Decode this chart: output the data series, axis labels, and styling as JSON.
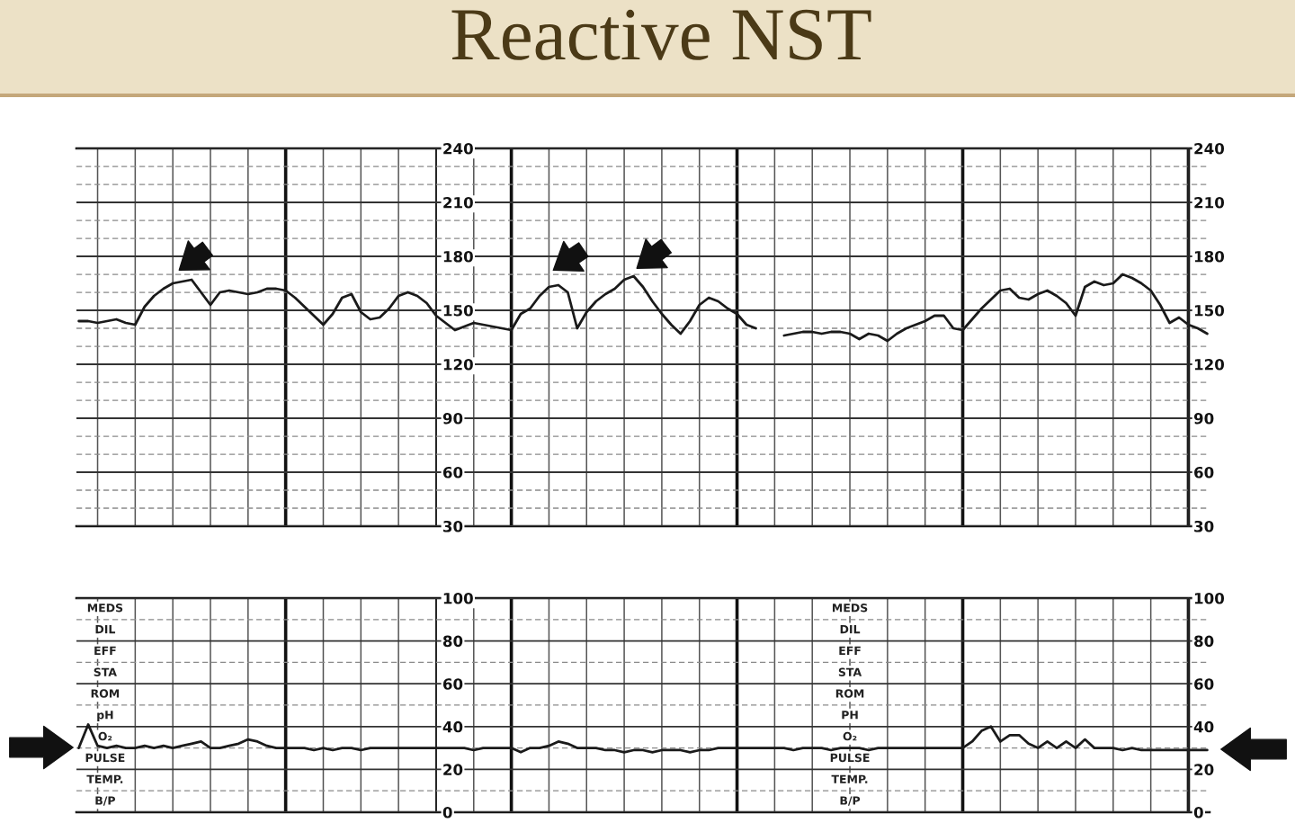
{
  "chart_data": [
    {
      "type": "line",
      "title": "Reactive NST",
      "categories": [
        null,
        null,
        null,
        null,
        null,
        null,
        null,
        null,
        null,
        null,
        null,
        null,
        null,
        null,
        null,
        null,
        null,
        null,
        null,
        null,
        null,
        null,
        null,
        null,
        null,
        null,
        null,
        null,
        null,
        null,
        null,
        null,
        null,
        null,
        null,
        null,
        null,
        null,
        null,
        null,
        null,
        null,
        null,
        null,
        null,
        null,
        null,
        null,
        null,
        null,
        null,
        null,
        null,
        null,
        null,
        null,
        null,
        null,
        null,
        null,
        null,
        null,
        null,
        null,
        null,
        null,
        null,
        null,
        null,
        null,
        null,
        null,
        null,
        null,
        null,
        null,
        null,
        null,
        null,
        null,
        null,
        null,
        null,
        null,
        null,
        null,
        null,
        null,
        null,
        null,
        null,
        null,
        null,
        null,
        null,
        null,
        null,
        null,
        null,
        null,
        null,
        null,
        null,
        null,
        null,
        null,
        null,
        null,
        null,
        null,
        null,
        null,
        null,
        null,
        null,
        null,
        null,
        null,
        null,
        null,
        null
      ],
      "series": [
        {
          "color": "#1a1a1a",
          "values": [
            144,
            144,
            143,
            144,
            145,
            143,
            142,
            152,
            158,
            162,
            165,
            166,
            167,
            160,
            153,
            160,
            161,
            160,
            159,
            160,
            162,
            162,
            161,
            157,
            152,
            147,
            142,
            148,
            157,
            159,
            149,
            145,
            146,
            151,
            158,
            160,
            158,
            154,
            147,
            143,
            139,
            141,
            143,
            142,
            141,
            140,
            139,
            148,
            151,
            158,
            163,
            164,
            160,
            140,
            149,
            155,
            159,
            162,
            167,
            169,
            163,
            155,
            148,
            142,
            137,
            144,
            153,
            157,
            155,
            151,
            148,
            142,
            140,
            null,
            null,
            null,
            null,
            null,
            null,
            null,
            null,
            null,
            null,
            null,
            null,
            null,
            null,
            null,
            null,
            null,
            null,
            null,
            null,
            null,
            null,
            null,
            null,
            null,
            null,
            null,
            null,
            null,
            null,
            null,
            null,
            null,
            null,
            null,
            null,
            null,
            null,
            null,
            null,
            null,
            null,
            null,
            null,
            null,
            null,
            null,
            null
          ]
        },
        {
          "color": "#1a1a1a",
          "values": [
            null,
            null,
            null,
            null,
            null,
            null,
            null,
            null,
            null,
            null,
            null,
            null,
            null,
            null,
            null,
            null,
            null,
            null,
            null,
            null,
            null,
            null,
            null,
            null,
            null,
            null,
            null,
            null,
            null,
            null,
            null,
            null,
            null,
            null,
            null,
            null,
            null,
            null,
            null,
            null,
            null,
            null,
            null,
            null,
            null,
            null,
            null,
            null,
            null,
            null,
            null,
            null,
            null,
            null,
            null,
            null,
            null,
            null,
            null,
            null,
            null,
            null,
            null,
            null,
            null,
            null,
            null,
            null,
            null,
            null,
            null,
            null,
            null,
            null,
            null,
            136,
            137,
            138,
            138,
            137,
            138,
            138,
            137,
            134,
            137,
            136,
            133,
            137,
            140,
            142,
            144,
            147,
            147,
            140,
            139,
            145,
            151,
            156,
            161,
            162,
            157,
            156,
            159,
            161,
            158,
            154,
            147,
            163,
            166,
            164,
            165,
            170,
            168,
            165,
            161,
            153,
            143,
            146,
            142,
            140,
            137
          ]
        }
      ],
      "ylim": [
        30,
        240
      ],
      "yticks": [
        30,
        {
          "value": 40,
          "label": null
        },
        {
          "value": 50,
          "label": null
        },
        60,
        {
          "value": 70,
          "label": null
        },
        {
          "value": 80,
          "label": null
        },
        90,
        {
          "value": 100,
          "label": null
        },
        {
          "value": 110,
          "label": null
        },
        120,
        {
          "value": 130,
          "label": null
        },
        {
          "value": 140,
          "label": null
        },
        150,
        {
          "value": 160,
          "label": null
        },
        {
          "value": 170,
          "label": null
        },
        180,
        {
          "value": 190,
          "label": null
        },
        {
          "value": 200,
          "label": null
        },
        210,
        {
          "value": 220,
          "label": null
        },
        {
          "value": 230,
          "label": null
        },
        240
      ],
      "y2lim": [
        30,
        240
      ],
      "y2ticks": [
        30,
        {
          "value": 40,
          "label": null
        },
        {
          "value": 50,
          "label": null
        },
        60,
        {
          "value": 70,
          "label": null
        },
        {
          "value": 80,
          "label": null
        },
        90,
        {
          "value": 100,
          "label": null
        },
        {
          "value": 110,
          "label": null
        },
        120,
        {
          "value": 130,
          "label": null
        },
        {
          "value": 140,
          "label": null
        },
        150,
        {
          "value": 160,
          "label": null
        },
        {
          "value": 170,
          "label": null
        },
        180,
        {
          "value": 190,
          "label": null
        },
        {
          "value": 200,
          "label": null
        },
        210,
        {
          "value": 220,
          "label": null
        },
        {
          "value": 230,
          "label": null
        },
        240
      ],
      "grid": true,
      "tick_labels": "y",
      "line_style": "solid"
    },
    {
      "type": "line",
      "categories": [
        null,
        null,
        null,
        null,
        null,
        null,
        null,
        null,
        null,
        null,
        null,
        null,
        null,
        null,
        null,
        null,
        null,
        null,
        null,
        null,
        null,
        null,
        null,
        null,
        null,
        null,
        null,
        null,
        null,
        null,
        null,
        null,
        null,
        null,
        null,
        null,
        null,
        null,
        null,
        null,
        null,
        null,
        null,
        null,
        null,
        null,
        null,
        null,
        null,
        null,
        null,
        null,
        null,
        null,
        null,
        null,
        null,
        null,
        null,
        null,
        null,
        null,
        null,
        null,
        null,
        null,
        null,
        null,
        null,
        null,
        null,
        null,
        null,
        null,
        null,
        null,
        null,
        null,
        null,
        null,
        null,
        null,
        null,
        null,
        null,
        null,
        null,
        null,
        null,
        null,
        null,
        null,
        null,
        null,
        null,
        null,
        null,
        null,
        null,
        null,
        null,
        null,
        null,
        null,
        null,
        null,
        null,
        null,
        null,
        null,
        null,
        null,
        null,
        null,
        null,
        null,
        null,
        null,
        null,
        null,
        null
      ],
      "series": [
        {
          "color": "#1a1a1a",
          "values": [
            30,
            41,
            31,
            30,
            31,
            30,
            30,
            31,
            30,
            31,
            30,
            31,
            32,
            33,
            30,
            30,
            31,
            32,
            34,
            33,
            31,
            30,
            30,
            30,
            30,
            29,
            30,
            29,
            30,
            30,
            29,
            30,
            30,
            30,
            30,
            30,
            30,
            30,
            30,
            30,
            30,
            30,
            29,
            30,
            30,
            30,
            30,
            28,
            30,
            30,
            31,
            33,
            32,
            30,
            30,
            30,
            29,
            29,
            28,
            29,
            29,
            28,
            29,
            29,
            29,
            28,
            29,
            29,
            30,
            30,
            30,
            30,
            30,
            30,
            30,
            30,
            29,
            30,
            30,
            30,
            29,
            30,
            30,
            30,
            29,
            30,
            30,
            30,
            30,
            30,
            30,
            30,
            30,
            30,
            30,
            33,
            38,
            40,
            33,
            36,
            36,
            32,
            30,
            33,
            30,
            33,
            30,
            34,
            30,
            30,
            30,
            29,
            30,
            29,
            29,
            29,
            29,
            29,
            29,
            29,
            29
          ]
        }
      ],
      "ylim": [
        0,
        100
      ],
      "yticks": [
        0,
        {
          "value": 10,
          "label": null
        },
        20,
        {
          "value": 30,
          "label": null
        },
        40,
        {
          "value": 50,
          "label": null
        },
        60,
        {
          "value": 70,
          "label": null
        },
        80,
        {
          "value": 90,
          "label": null
        },
        100
      ],
      "y2lim": [
        0,
        100
      ],
      "y2ticks": [
        0,
        {
          "value": 10,
          "label": null
        },
        20,
        {
          "value": 30,
          "label": null
        },
        40,
        {
          "value": 50,
          "label": null
        },
        60,
        {
          "value": 70,
          "label": null
        },
        80,
        {
          "value": 90,
          "label": null
        },
        100
      ],
      "annotations": [
        "MEDS",
        "DIL",
        "EFF",
        "STA",
        "ROM",
        "pH",
        "O₂",
        "PULSE",
        "TEMP.",
        "B/P",
        "MEDS",
        "DIL",
        "EFF",
        "STA",
        "ROM",
        "PH",
        "O₂",
        "PULSE",
        "TEMP.",
        "B/P"
      ],
      "grid": true,
      "tick_labels": "y",
      "line_style": "solid"
    }
  ]
}
